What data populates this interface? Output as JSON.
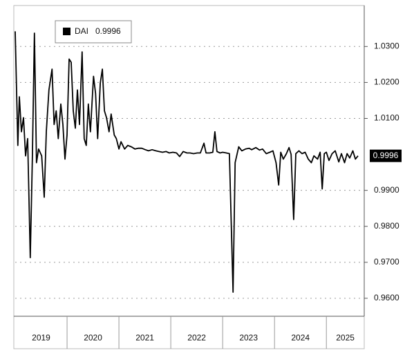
{
  "chart_data": {
    "type": "line",
    "series": [
      {
        "name": "DAI",
        "color": "#000000",
        "x": [
          2019.0,
          2019.05,
          2019.08,
          2019.12,
          2019.16,
          2019.2,
          2019.24,
          2019.29,
          2019.33,
          2019.37,
          2019.41,
          2019.45,
          2019.51,
          2019.56,
          2019.6,
          2019.65,
          2019.71,
          2019.75,
          2019.79,
          2019.83,
          2019.88,
          2019.92,
          2019.96,
          2020.0,
          2020.04,
          2020.08,
          2020.12,
          2020.16,
          2020.2,
          2020.24,
          2020.29,
          2020.33,
          2020.37,
          2020.41,
          2020.45,
          2020.51,
          2020.55,
          2020.59,
          2020.64,
          2020.68,
          2020.72,
          2020.76,
          2020.81,
          2020.85,
          2020.91,
          2020.95,
          2021.0,
          2021.04,
          2021.11,
          2021.17,
          2021.24,
          2021.31,
          2021.37,
          2021.44,
          2021.51,
          2021.57,
          2021.64,
          2021.71,
          2021.77,
          2021.84,
          2021.91,
          2021.97,
          2022.04,
          2022.11,
          2022.17,
          2022.24,
          2022.31,
          2022.37,
          2022.44,
          2022.51,
          2022.57,
          2022.64,
          2022.68,
          2022.75,
          2022.81,
          2022.85,
          2022.89,
          2022.95,
          2023.0,
          2023.07,
          2023.13,
          2023.2,
          2023.24,
          2023.31,
          2023.37,
          2023.44,
          2023.51,
          2023.56,
          2023.64,
          2023.71,
          2023.77,
          2023.84,
          2023.91,
          2023.97,
          2024.03,
          2024.08,
          2024.12,
          2024.17,
          2024.23,
          2024.28,
          2024.32,
          2024.37,
          2024.41,
          2024.47,
          2024.53,
          2024.59,
          2024.65,
          2024.71,
          2024.76,
          2024.83,
          2024.88,
          2024.92,
          2024.96,
          2025.0,
          2025.05,
          2025.11,
          2025.17,
          2025.24,
          2025.29,
          2025.35,
          2025.4,
          2025.45,
          2025.51,
          2025.56,
          2025.61
        ],
        "values": [
          1.0342,
          1.0025,
          1.016,
          1.0063,
          1.0102,
          0.9996,
          1.0044,
          0.9713,
          0.9987,
          1.0337,
          0.9977,
          1.0015,
          0.9996,
          0.9881,
          1.0063,
          1.0179,
          1.0237,
          1.0083,
          1.0121,
          1.0044,
          1.014,
          1.0083,
          0.9987,
          1.0054,
          1.0265,
          1.0256,
          1.0121,
          1.0073,
          1.0179,
          1.0083,
          1.0285,
          1.0044,
          1.0025,
          1.014,
          1.0063,
          1.0217,
          1.0169,
          1.0044,
          1.0198,
          1.0237,
          1.0121,
          1.0102,
          1.0063,
          1.0112,
          1.0054,
          1.0044,
          1.0015,
          1.0035,
          1.0015,
          1.0025,
          1.0021,
          1.0015,
          1.0017,
          1.0017,
          1.0013,
          1.001,
          1.0013,
          1.001,
          1.0008,
          1.0006,
          1.0008,
          1.0004,
          1.0006,
          1.0004,
          0.9994,
          1.0008,
          1.0004,
          1.0004,
          1.0002,
          1.0004,
          1.0004,
          1.0031,
          1.0004,
          1.0004,
          1.0006,
          1.0063,
          1.0008,
          1.0004,
          1.0006,
          1.0004,
          1.0002,
          0.9617,
          0.9977,
          1.0021,
          1.001,
          1.0015,
          1.0017,
          1.0013,
          1.0019,
          1.0012,
          1.0015,
          1.0002,
          1.0006,
          1.001,
          0.9977,
          0.9915,
          1.0006,
          0.9987,
          1.0002,
          1.0019,
          1.0,
          0.9819,
          1.0002,
          1.001,
          1.0002,
          1.0006,
          0.9987,
          0.9977,
          0.9996,
          0.9987,
          1.0006,
          0.9904,
          1.0002,
          1.0006,
          0.9983,
          1.0002,
          1.001,
          0.9979,
          1.0002,
          0.9977,
          1.0002,
          0.999,
          1.001,
          0.9987,
          0.9996
        ]
      }
    ],
    "categories": [
      "2019",
      "2020",
      "2021",
      "2022",
      "2023",
      "2024",
      "2025"
    ],
    "xlim": [
      2019,
      2025.73
    ],
    "ylim": [
      0.955,
      1.041
    ],
    "yticks": [
      {
        "value": 0.96,
        "label": "0.9600"
      },
      {
        "value": 0.97,
        "label": "0.9700"
      },
      {
        "value": 0.98,
        "label": "0.9800"
      },
      {
        "value": 0.99,
        "label": "0.9900"
      },
      {
        "value": 1.01,
        "label": "1.0100"
      },
      {
        "value": 1.02,
        "label": "1.0200"
      },
      {
        "value": 1.03,
        "label": "1.0300"
      }
    ],
    "grid": true
  }
}
